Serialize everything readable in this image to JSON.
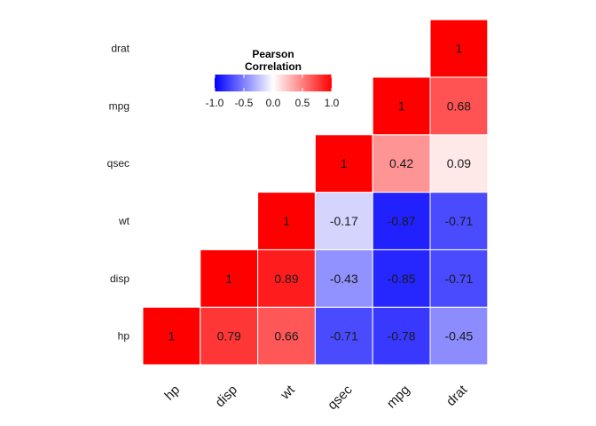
{
  "chart_data": {
    "type": "heatmap",
    "x_categories": [
      "hp",
      "disp",
      "wt",
      "qsec",
      "mpg",
      "drat"
    ],
    "y_categories": [
      "hp",
      "disp",
      "wt",
      "qsec",
      "mpg",
      "drat"
    ],
    "cells": [
      {
        "x": "hp",
        "y": "hp",
        "value": 1
      },
      {
        "x": "disp",
        "y": "hp",
        "value": 0.79
      },
      {
        "x": "wt",
        "y": "hp",
        "value": 0.66
      },
      {
        "x": "qsec",
        "y": "hp",
        "value": -0.71
      },
      {
        "x": "mpg",
        "y": "hp",
        "value": -0.78
      },
      {
        "x": "drat",
        "y": "hp",
        "value": -0.45
      },
      {
        "x": "disp",
        "y": "disp",
        "value": 1
      },
      {
        "x": "wt",
        "y": "disp",
        "value": 0.89
      },
      {
        "x": "qsec",
        "y": "disp",
        "value": -0.43
      },
      {
        "x": "mpg",
        "y": "disp",
        "value": -0.85
      },
      {
        "x": "drat",
        "y": "disp",
        "value": -0.71
      },
      {
        "x": "wt",
        "y": "wt",
        "value": 1
      },
      {
        "x": "qsec",
        "y": "wt",
        "value": -0.17
      },
      {
        "x": "mpg",
        "y": "wt",
        "value": -0.87
      },
      {
        "x": "drat",
        "y": "wt",
        "value": -0.71
      },
      {
        "x": "qsec",
        "y": "qsec",
        "value": 1
      },
      {
        "x": "mpg",
        "y": "qsec",
        "value": 0.42
      },
      {
        "x": "drat",
        "y": "qsec",
        "value": 0.09
      },
      {
        "x": "mpg",
        "y": "mpg",
        "value": 1
      },
      {
        "x": "drat",
        "y": "mpg",
        "value": 0.68
      },
      {
        "x": "drat",
        "y": "drat",
        "value": 1
      }
    ],
    "legend": {
      "title": "Pearson\nCorrelation",
      "limits": [
        -1,
        1
      ],
      "ticks": [
        "-1.0",
        "-0.5",
        "0.0",
        "0.5",
        "1.0"
      ],
      "placement": "top-left inside plot"
    },
    "colors": {
      "low": "#0000ff",
      "mid": "#ffffff",
      "high": "#ff0000"
    },
    "grid": false
  }
}
